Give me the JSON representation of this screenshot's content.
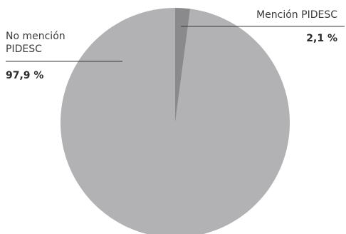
{
  "chart_data": {
    "type": "pie",
    "slices": [
      {
        "label": "No mención PIDESC",
        "value": 97.9,
        "value_label": "97,9 %",
        "color": "#b2b2b4"
      },
      {
        "label": "Mención PIDESC",
        "value": 2.1,
        "value_label": "2,1 %",
        "color": "#8a8a8c"
      }
    ],
    "start_angle": "12 o'clock",
    "direction": "counterclockwise",
    "legend": "callout labels with leader lines"
  }
}
